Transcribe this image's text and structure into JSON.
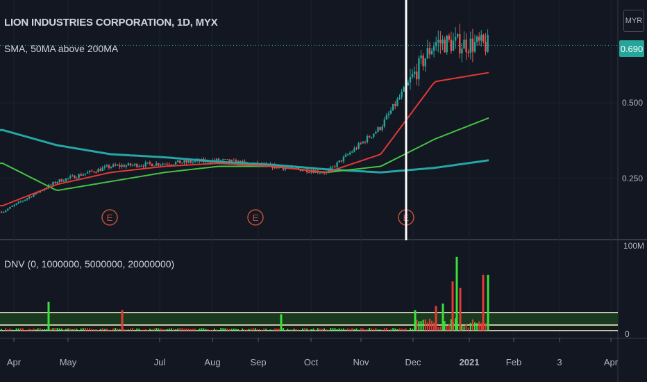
{
  "header": {
    "title": "LION INDUSTRIES CORPORATION, 1D, MYX",
    "indicator_label": "SMA, 50MA above 200MA",
    "currency": "MYR",
    "last_price": "0.690"
  },
  "volume_pane": {
    "label": "DNV (0, 1000000, 5000000, 20000000)"
  },
  "colors": {
    "background": "#131722",
    "up": "#26a69a",
    "down": "#ef5350",
    "sma_fast": "#e53935",
    "sma_mid": "#43c443",
    "sma_slow": "#26a6a6",
    "vol_up": "#3ae03a",
    "vol_down": "#e53935",
    "band_fill": "#1a3a20",
    "band_line": "#fff8dc",
    "earnings": "#c0503a",
    "cursor": "#ffffff"
  },
  "chart_data": {
    "type": "line",
    "price_axis": {
      "ticks": [
        "0.690",
        "0.500",
        "0.250"
      ],
      "ylim": [
        0.05,
        0.84
      ]
    },
    "volume_axis": {
      "ticks": [
        "100M",
        "0"
      ],
      "ylim": [
        0,
        100000000
      ]
    },
    "x_axis": {
      "ticks": [
        "Apr",
        "May",
        "Jul",
        "Aug",
        "Sep",
        "Oct",
        "Nov",
        "Dec",
        "2021",
        "Feb",
        "3",
        "Apr"
      ]
    },
    "x": [
      "Apr",
      "May",
      "Jul",
      "Aug",
      "Sep",
      "Oct",
      "Nov",
      "Dec",
      "2021",
      "Feb"
    ],
    "series": [
      {
        "name": "",
        "values": [
          0.14,
          0.24,
          0.29,
          0.3,
          0.31,
          0.29,
          0.27,
          0.42,
          0.7,
          0.69
        ]
      },
      {
        "name": "",
        "values": [
          0.16,
          0.23,
          0.27,
          0.29,
          0.3,
          0.29,
          0.27,
          0.33,
          0.57,
          0.6
        ]
      },
      {
        "name": "",
        "values": [
          0.3,
          0.21,
          0.24,
          0.27,
          0.29,
          0.29,
          0.27,
          0.29,
          0.38,
          0.45
        ]
      },
      {
        "name": "",
        "values": [
          0.41,
          0.36,
          0.33,
          0.32,
          0.305,
          0.295,
          0.28,
          0.27,
          0.285,
          0.31
        ]
      }
    ],
    "earnings_markers": [
      {
        "label": "E",
        "x": "May"
      },
      {
        "label": "E",
        "x": "Sep"
      },
      {
        "label": "E",
        "x": "Nov"
      }
    ],
    "volume_thresholds": [
      1000000,
      5000000,
      20000000
    ],
    "volume_spikes": [
      {
        "x": "Apr",
        "value": 35000000
      },
      {
        "x": "Dec",
        "value": 90000000
      },
      {
        "x": "2021",
        "value": 70000000
      }
    ]
  }
}
